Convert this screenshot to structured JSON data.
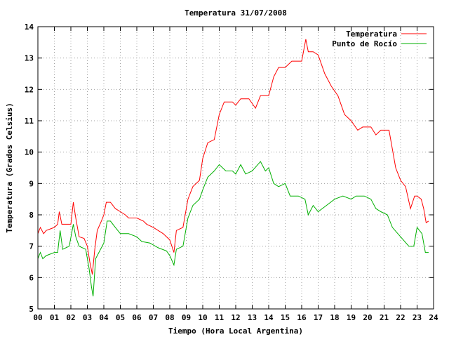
{
  "chart_data": {
    "type": "line",
    "title": "Temperatura 31/07/2008",
    "xlabel": "Tiempo (Hora Local Argentina)",
    "ylabel": "Temperatura (Grados Celsius)",
    "xlim": [
      0,
      24
    ],
    "ylim": [
      5,
      14
    ],
    "x_ticks": [
      "00",
      "01",
      "02",
      "03",
      "04",
      "05",
      "06",
      "07",
      "08",
      "09",
      "10",
      "11",
      "12",
      "13",
      "14",
      "15",
      "16",
      "17",
      "18",
      "19",
      "20",
      "21",
      "22",
      "23",
      "24"
    ],
    "y_ticks": [
      5,
      6,
      7,
      8,
      9,
      10,
      11,
      12,
      13,
      14
    ],
    "grid": true,
    "legend_position": "top-right",
    "series": [
      {
        "name": "Temperatura",
        "color": "#ff0000",
        "points": [
          [
            0.0,
            7.4
          ],
          [
            0.15,
            7.6
          ],
          [
            0.35,
            7.4
          ],
          [
            0.5,
            7.5
          ],
          [
            0.75,
            7.55
          ],
          [
            1.0,
            7.6
          ],
          [
            1.2,
            7.7
          ],
          [
            1.3,
            8.1
          ],
          [
            1.45,
            7.7
          ],
          [
            1.7,
            7.7
          ],
          [
            2.0,
            7.7
          ],
          [
            2.15,
            8.4
          ],
          [
            2.3,
            7.9
          ],
          [
            2.5,
            7.3
          ],
          [
            2.8,
            7.25
          ],
          [
            3.0,
            7.0
          ],
          [
            3.15,
            6.5
          ],
          [
            3.3,
            6.1
          ],
          [
            3.45,
            6.9
          ],
          [
            3.6,
            7.5
          ],
          [
            3.85,
            7.8
          ],
          [
            4.0,
            8.0
          ],
          [
            4.15,
            8.4
          ],
          [
            4.4,
            8.4
          ],
          [
            4.7,
            8.2
          ],
          [
            5.0,
            8.1
          ],
          [
            5.3,
            8.0
          ],
          [
            5.5,
            7.9
          ],
          [
            6.0,
            7.9
          ],
          [
            6.4,
            7.8
          ],
          [
            6.6,
            7.7
          ],
          [
            7.0,
            7.6
          ],
          [
            7.3,
            7.5
          ],
          [
            7.6,
            7.4
          ],
          [
            8.0,
            7.2
          ],
          [
            8.25,
            6.8
          ],
          [
            8.4,
            7.5
          ],
          [
            8.8,
            7.6
          ],
          [
            9.1,
            8.5
          ],
          [
            9.4,
            8.9
          ],
          [
            9.8,
            9.1
          ],
          [
            10.0,
            9.8
          ],
          [
            10.3,
            10.3
          ],
          [
            10.7,
            10.4
          ],
          [
            11.0,
            11.2
          ],
          [
            11.3,
            11.6
          ],
          [
            11.8,
            11.6
          ],
          [
            12.0,
            11.5
          ],
          [
            12.3,
            11.7
          ],
          [
            12.8,
            11.7
          ],
          [
            13.2,
            11.4
          ],
          [
            13.5,
            11.8
          ],
          [
            14.0,
            11.8
          ],
          [
            14.3,
            12.4
          ],
          [
            14.6,
            12.7
          ],
          [
            15.0,
            12.7
          ],
          [
            15.4,
            12.9
          ],
          [
            16.0,
            12.9
          ],
          [
            16.25,
            13.6
          ],
          [
            16.4,
            13.2
          ],
          [
            16.7,
            13.2
          ],
          [
            17.0,
            13.1
          ],
          [
            17.4,
            12.5
          ],
          [
            17.8,
            12.1
          ],
          [
            18.2,
            11.8
          ],
          [
            18.6,
            11.2
          ],
          [
            19.0,
            11.0
          ],
          [
            19.4,
            10.7
          ],
          [
            19.7,
            10.8
          ],
          [
            20.2,
            10.8
          ],
          [
            20.5,
            10.55
          ],
          [
            20.8,
            10.7
          ],
          [
            21.3,
            10.7
          ],
          [
            21.7,
            9.5
          ],
          [
            22.0,
            9.1
          ],
          [
            22.3,
            8.9
          ],
          [
            22.6,
            8.2
          ],
          [
            22.85,
            8.6
          ],
          [
            23.0,
            8.6
          ],
          [
            23.25,
            8.5
          ],
          [
            23.4,
            8.2
          ],
          [
            23.55,
            7.75
          ],
          [
            23.7,
            7.8
          ]
        ]
      },
      {
        "name": "Punto de Rocío",
        "color": "#00b000",
        "points": [
          [
            0.0,
            6.6
          ],
          [
            0.15,
            6.8
          ],
          [
            0.3,
            6.6
          ],
          [
            0.5,
            6.7
          ],
          [
            1.0,
            6.8
          ],
          [
            1.2,
            6.8
          ],
          [
            1.35,
            7.5
          ],
          [
            1.5,
            6.9
          ],
          [
            1.9,
            7.0
          ],
          [
            2.15,
            7.7
          ],
          [
            2.3,
            7.3
          ],
          [
            2.5,
            7.0
          ],
          [
            2.9,
            6.9
          ],
          [
            3.1,
            6.3
          ],
          [
            3.25,
            5.7
          ],
          [
            3.35,
            5.4
          ],
          [
            3.5,
            6.6
          ],
          [
            3.8,
            6.9
          ],
          [
            4.0,
            7.1
          ],
          [
            4.2,
            7.8
          ],
          [
            4.4,
            7.8
          ],
          [
            4.7,
            7.6
          ],
          [
            5.0,
            7.4
          ],
          [
            5.5,
            7.4
          ],
          [
            6.0,
            7.3
          ],
          [
            6.3,
            7.15
          ],
          [
            6.8,
            7.1
          ],
          [
            7.3,
            6.95
          ],
          [
            7.8,
            6.85
          ],
          [
            8.0,
            6.7
          ],
          [
            8.25,
            6.4
          ],
          [
            8.4,
            6.9
          ],
          [
            8.8,
            7.0
          ],
          [
            9.1,
            7.9
          ],
          [
            9.4,
            8.3
          ],
          [
            9.8,
            8.5
          ],
          [
            10.0,
            8.8
          ],
          [
            10.3,
            9.2
          ],
          [
            10.7,
            9.4
          ],
          [
            11.0,
            9.6
          ],
          [
            11.4,
            9.4
          ],
          [
            11.8,
            9.4
          ],
          [
            12.0,
            9.3
          ],
          [
            12.3,
            9.6
          ],
          [
            12.6,
            9.3
          ],
          [
            13.0,
            9.4
          ],
          [
            13.5,
            9.7
          ],
          [
            13.8,
            9.4
          ],
          [
            14.0,
            9.5
          ],
          [
            14.3,
            9.0
          ],
          [
            14.6,
            8.9
          ],
          [
            15.0,
            9.0
          ],
          [
            15.3,
            8.6
          ],
          [
            15.8,
            8.6
          ],
          [
            16.2,
            8.5
          ],
          [
            16.4,
            8.0
          ],
          [
            16.7,
            8.3
          ],
          [
            17.0,
            8.1
          ],
          [
            17.5,
            8.3
          ],
          [
            18.0,
            8.5
          ],
          [
            18.5,
            8.6
          ],
          [
            19.0,
            8.5
          ],
          [
            19.3,
            8.6
          ],
          [
            19.8,
            8.6
          ],
          [
            20.2,
            8.5
          ],
          [
            20.5,
            8.2
          ],
          [
            20.8,
            8.1
          ],
          [
            21.2,
            8.0
          ],
          [
            21.5,
            7.6
          ],
          [
            22.0,
            7.3
          ],
          [
            22.5,
            7.0
          ],
          [
            22.8,
            7.0
          ],
          [
            23.0,
            7.6
          ],
          [
            23.3,
            7.4
          ],
          [
            23.5,
            6.8
          ],
          [
            23.7,
            6.8
          ]
        ]
      }
    ]
  }
}
